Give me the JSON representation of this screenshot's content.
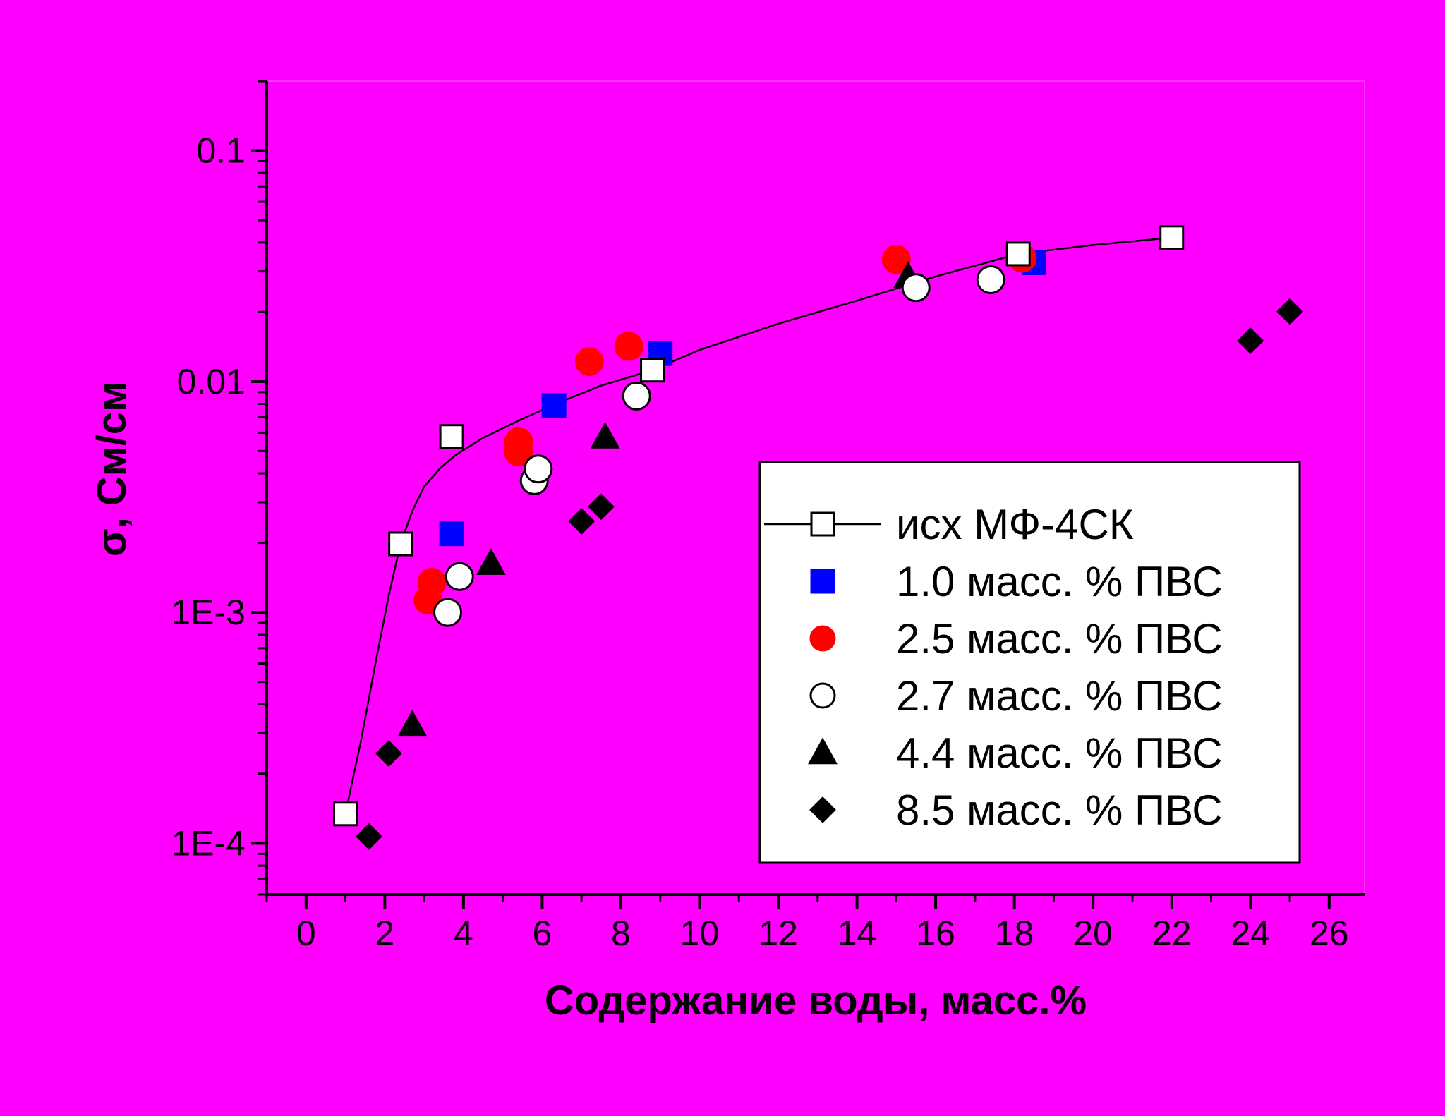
{
  "chart_data": {
    "type": "scatter",
    "title": "",
    "xlabel": "Содержание воды, масс.%",
    "ylabel": "σ, См/см",
    "xlim": [
      -1,
      26.9
    ],
    "ylim": [
      6e-05,
      0.2
    ],
    "yscale": "log",
    "grid": false,
    "legend_position": "bottom-right",
    "x_ticks": [
      0,
      2,
      4,
      6,
      8,
      10,
      12,
      14,
      16,
      18,
      20,
      22,
      24,
      26
    ],
    "x_tick_labels": [
      "0",
      "2",
      "4",
      "6",
      "8",
      "10",
      "12",
      "14",
      "16",
      "18",
      "20",
      "22",
      "24",
      "26"
    ],
    "y_ticks": [
      0.0001,
      0.001,
      0.01,
      0.1
    ],
    "y_tick_labels": [
      "1E-4",
      "1E-3",
      "0.01",
      "0.1"
    ],
    "series": [
      {
        "name": "исх МФ-4СК",
        "marker": "square-open",
        "color": "#ffffff",
        "line": true,
        "x": [
          1.0,
          2.4,
          3.7,
          8.8,
          18.1,
          22.0
        ],
        "y": [
          0.000134,
          0.00198,
          0.00578,
          0.0112,
          0.0357,
          0.042
        ],
        "curve": {
          "x": [
            1.0,
            1.4,
            1.8,
            2.1,
            2.4,
            2.7,
            3.0,
            3.4,
            3.8,
            4.5,
            5.5,
            6.5,
            7.5,
            8.8,
            10,
            12,
            14,
            16,
            18.1,
            20,
            22.0
          ],
          "y": [
            0.000134,
            0.00028,
            0.00065,
            0.00118,
            0.00198,
            0.00275,
            0.0035,
            0.0042,
            0.0048,
            0.0057,
            0.0069,
            0.0082,
            0.0096,
            0.0112,
            0.0137,
            0.0178,
            0.0224,
            0.0285,
            0.0357,
            0.039,
            0.042
          ]
        }
      },
      {
        "name": "1.0 масс. % ПВС",
        "marker": "square",
        "color": "#0000ff",
        "x": [
          3.7,
          6.3,
          9.0,
          18.5
        ],
        "y": [
          0.00219,
          0.00787,
          0.0132,
          0.0327
        ]
      },
      {
        "name": "2.5 масс. % ПВС",
        "marker": "circle",
        "color": "#ff0000",
        "x": [
          3.1,
          3.2,
          5.4,
          5.4,
          7.2,
          8.2,
          15.0,
          18.2
        ],
        "y": [
          0.00113,
          0.00135,
          0.00495,
          0.00548,
          0.0122,
          0.0142,
          0.0338,
          0.0342
        ]
      },
      {
        "name": "2.7 масс. % ПВС",
        "marker": "circle-open",
        "color": "#ffffff",
        "x": [
          3.6,
          3.9,
          5.8,
          5.9,
          8.4,
          15.5,
          17.4
        ],
        "y": [
          0.001,
          0.00143,
          0.00372,
          0.00418,
          0.00865,
          0.0255,
          0.0276
        ]
      },
      {
        "name": "4.4 масс. % ПВС",
        "marker": "triangle",
        "color": "#000000",
        "x": [
          2.7,
          4.7,
          7.6,
          15.3
        ],
        "y": [
          0.000325,
          0.00163,
          0.00575,
          0.0285
        ]
      },
      {
        "name": "8.5 масс. % ПВС",
        "marker": "diamond",
        "color": "#000000",
        "x": [
          1.6,
          2.1,
          7.0,
          7.5,
          24.0,
          25.0
        ],
        "y": [
          0.000107,
          0.000245,
          0.00248,
          0.00287,
          0.015,
          0.0201
        ]
      }
    ]
  }
}
